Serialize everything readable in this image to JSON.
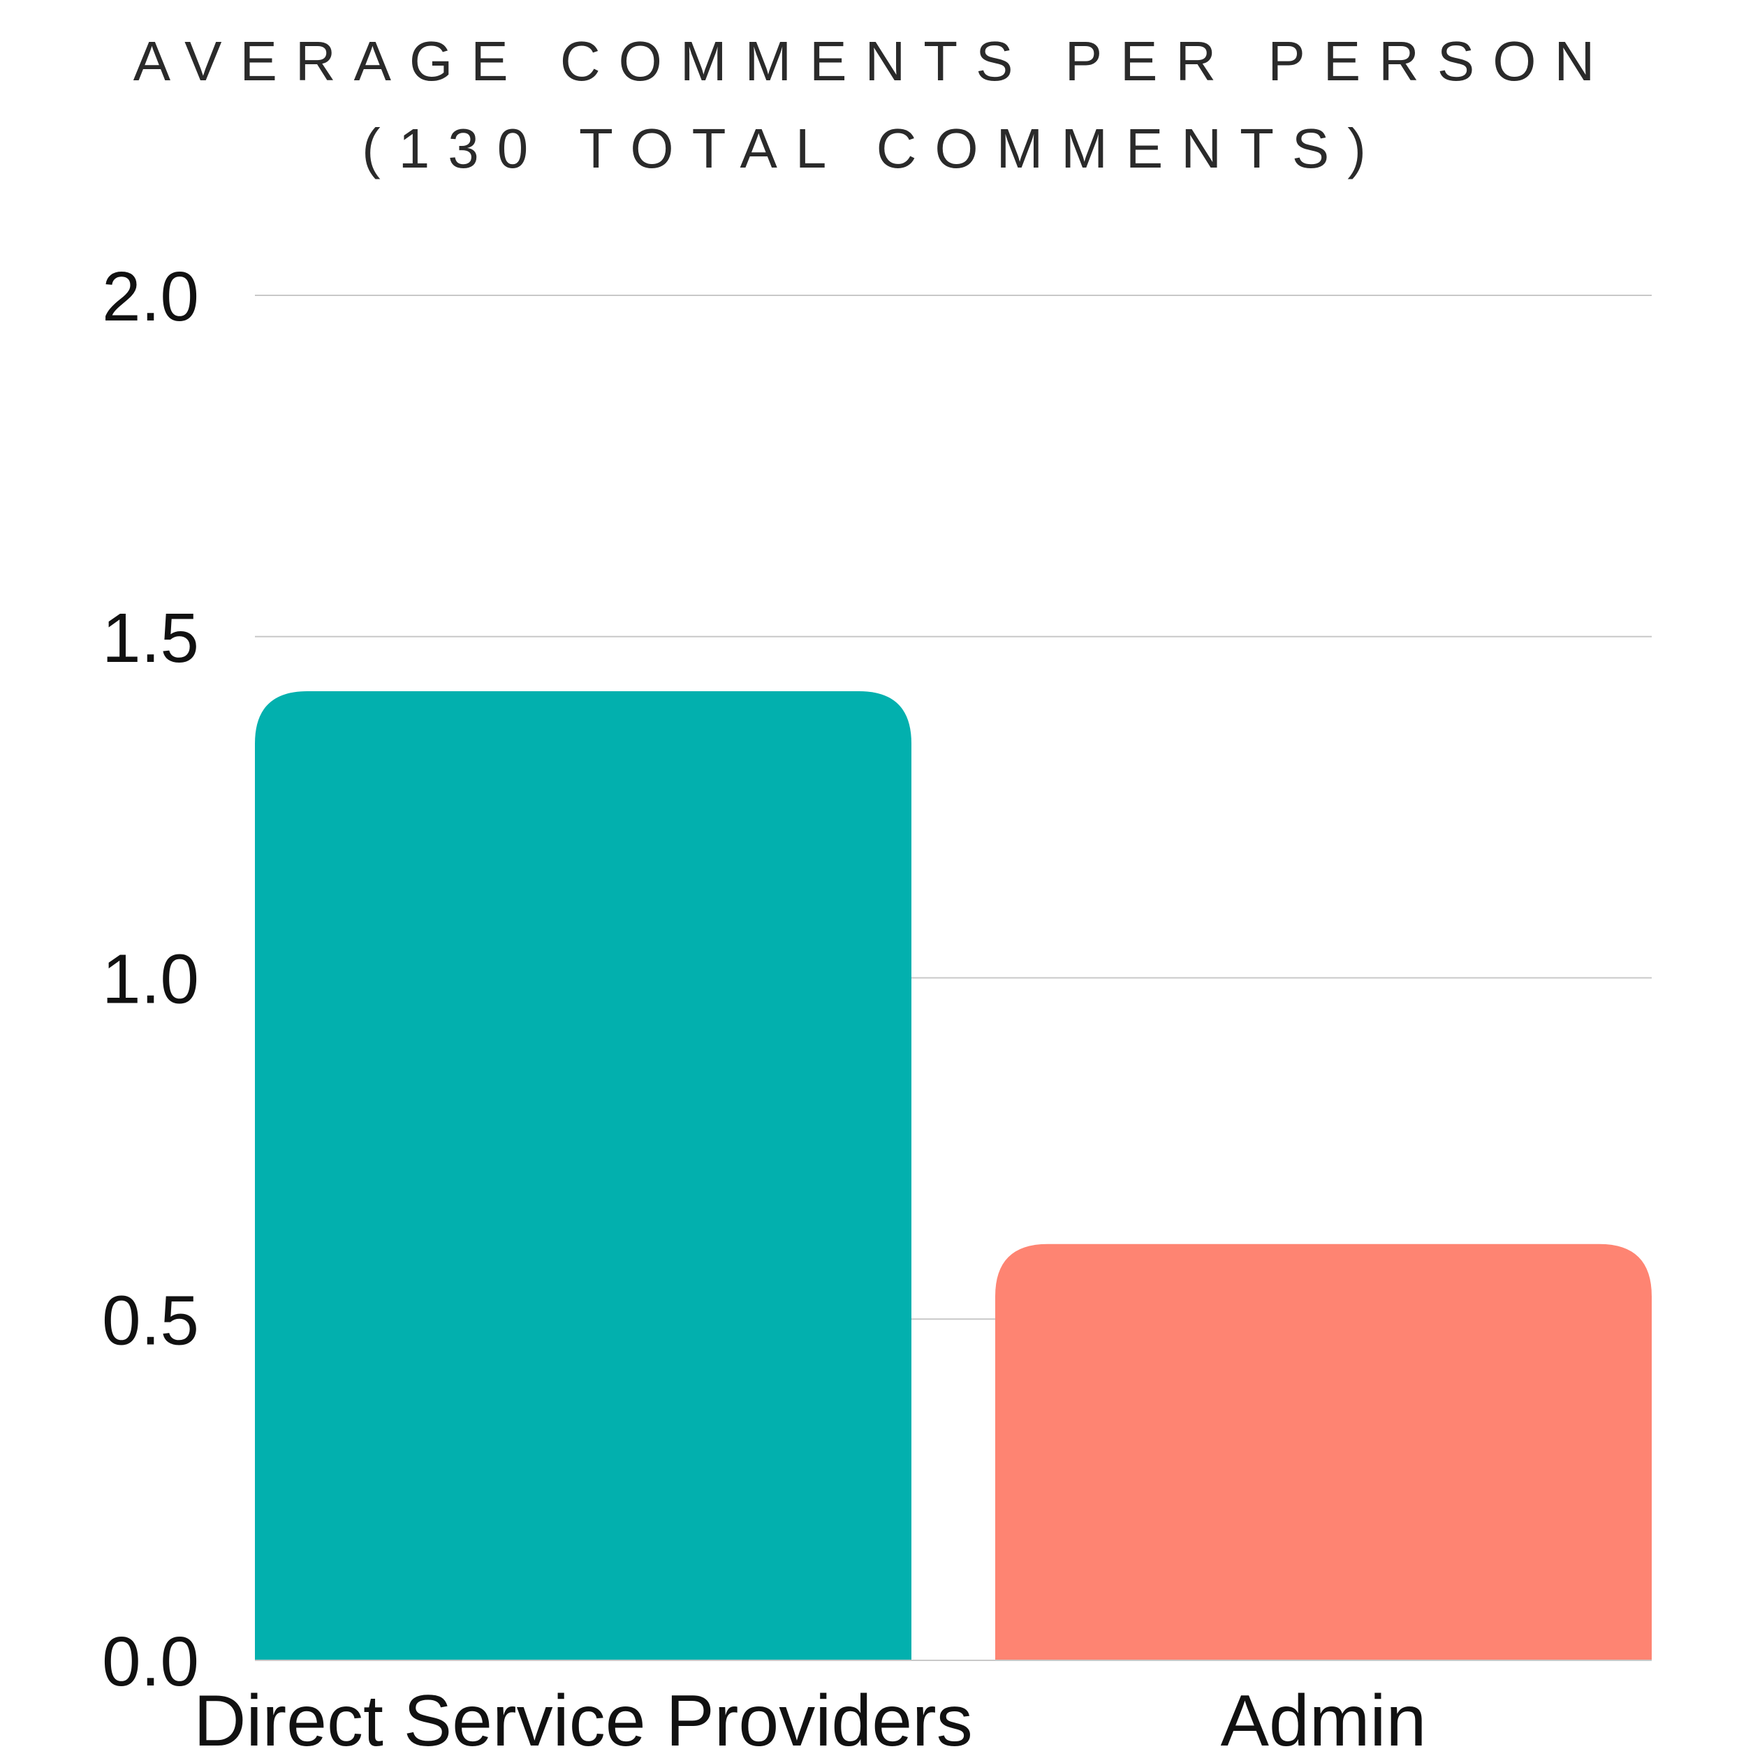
{
  "chart_data": {
    "type": "bar",
    "title": "AVERAGE COMMENTS PER PERSON",
    "subtitle": "(130 TOTAL COMMENTS)",
    "categories": [
      "Direct Service Providers",
      "Admin"
    ],
    "values": [
      1.42,
      0.61
    ],
    "colors": [
      "#02B0AE",
      "#FE8472"
    ],
    "xlabel": "",
    "ylabel": "",
    "ylim": [
      0,
      2.0
    ],
    "yticks": [
      "0.0",
      "0.5",
      "1.0",
      "1.5",
      "2.0"
    ],
    "grid": true,
    "legend": "none"
  }
}
